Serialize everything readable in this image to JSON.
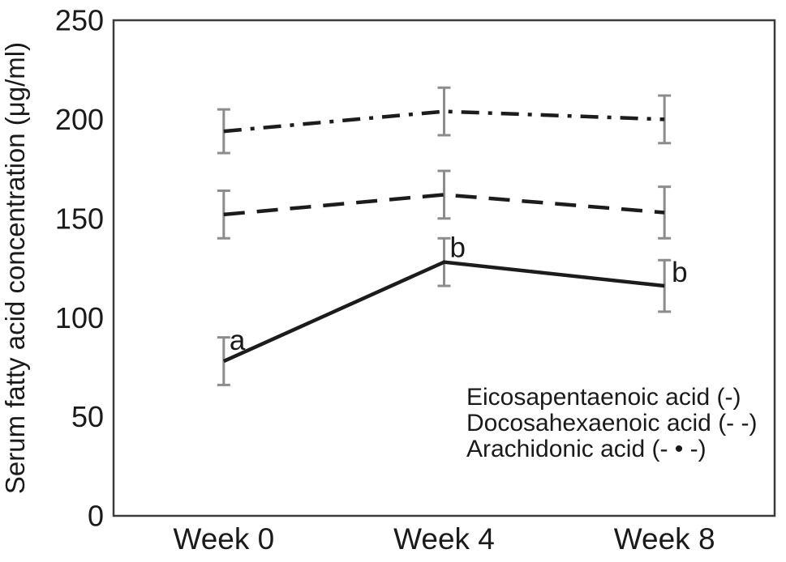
{
  "figure": {
    "background": "#ffffff"
  },
  "chart_data": {
    "type": "line",
    "title": "",
    "xlabel": "",
    "ylabel": "Serum fatty acid concentration (μg/ml)",
    "categories": [
      "Week 0",
      "Week 4",
      "Week 8"
    ],
    "ylim": [
      0,
      250
    ],
    "yticks": [
      0,
      50,
      100,
      150,
      200,
      250
    ],
    "grid": false,
    "legend_position": "inside-bottom-right",
    "series": [
      {
        "name": "Eicosapentaenoic acid",
        "legend_label": "Eicosapentaenoic acid (-)",
        "line_style": "solid",
        "values": [
          78,
          128,
          116
        ],
        "error_bars": [
          12,
          12,
          13
        ],
        "point_labels": [
          "a",
          "b",
          "b"
        ]
      },
      {
        "name": "Docosahexaenoic acid",
        "legend_label": "Docosahexaenoic acid (- -)",
        "line_style": "dashed",
        "values": [
          152,
          162,
          153
        ],
        "error_bars": [
          12,
          12,
          13
        ],
        "point_labels": [
          "",
          "",
          ""
        ]
      },
      {
        "name": "Arachidonic acid",
        "legend_label": "Arachidonic acid (- • -)",
        "line_style": "dash-dot",
        "values": [
          194,
          204,
          200
        ],
        "error_bars": [
          11,
          12,
          12
        ],
        "point_labels": [
          "",
          "",
          ""
        ]
      }
    ],
    "colors": {
      "line": "#1c1c1c",
      "error_bar": "#8c8c8c",
      "axis": "#3c3c3c",
      "text": "#1a1a1a",
      "background": "#ffffff"
    }
  }
}
